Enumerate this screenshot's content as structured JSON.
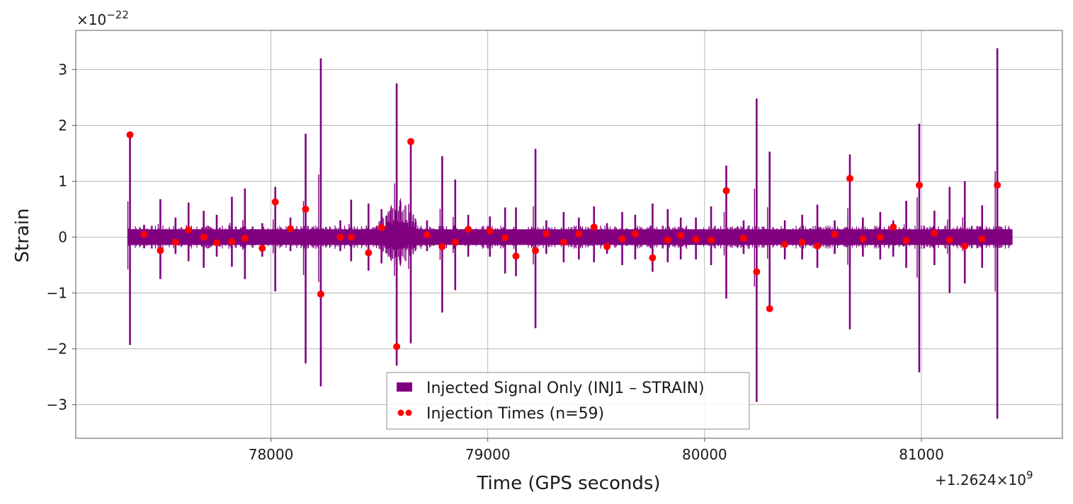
{
  "chart_data": {
    "type": "line",
    "xlabel": "Time (GPS seconds)",
    "ylabel": "Strain",
    "x_offset_label": "+1.2624×10",
    "x_offset_exponent": "9",
    "y_scale_label": "×10",
    "y_scale_exponent": "−22",
    "xlim": [
      77100,
      81650
    ],
    "ylim": [
      -3.6,
      3.7
    ],
    "x_ticks": [
      78000,
      79000,
      80000,
      81000
    ],
    "x_tick_labels": [
      "78000",
      "79000",
      "80000",
      "81000"
    ],
    "y_ticks": [
      3,
      2,
      1,
      0,
      -1,
      -2,
      -3
    ],
    "y_tick_labels": [
      "3",
      "2",
      "1",
      "0",
      "−1",
      "−2",
      "−3"
    ],
    "grid": true,
    "legend_position": "bottom-center",
    "colors": {
      "signal": "#800080",
      "injection": "#ff0000",
      "grid": "#b0b0b0",
      "frame": "#808080"
    },
    "signal": {
      "name": "Injected Signal Only (INJ1 – STRAIN)",
      "x_range": [
        77340,
        81420
      ],
      "band_halfwidth": 0.14,
      "spikes": [
        [
          77350,
          1.83,
          -1.93
        ],
        [
          77415,
          0.22,
          -0.2
        ],
        [
          77490,
          0.68,
          -0.75
        ],
        [
          77560,
          0.35,
          -0.3
        ],
        [
          77620,
          0.62,
          -0.43
        ],
        [
          77690,
          0.47,
          -0.55
        ],
        [
          77750,
          0.4,
          -0.35
        ],
        [
          77820,
          0.72,
          -0.53
        ],
        [
          77880,
          0.87,
          -0.75
        ],
        [
          77960,
          0.25,
          -0.35
        ],
        [
          78020,
          0.9,
          -0.97
        ],
        [
          78090,
          0.35,
          -0.25
        ],
        [
          78160,
          1.85,
          -2.26
        ],
        [
          78230,
          3.2,
          -2.67
        ],
        [
          78320,
          0.3,
          -0.25
        ],
        [
          78370,
          0.67,
          -0.43
        ],
        [
          78450,
          0.6,
          -0.6
        ],
        [
          78510,
          0.5,
          -0.47
        ],
        [
          78580,
          2.75,
          -2.3
        ],
        [
          78645,
          1.7,
          -1.9
        ],
        [
          78720,
          0.3,
          -0.25
        ],
        [
          78790,
          1.45,
          -1.35
        ],
        [
          78850,
          1.03,
          -0.95
        ],
        [
          78910,
          0.4,
          -0.35
        ],
        [
          79010,
          0.37,
          -0.35
        ],
        [
          79080,
          0.53,
          -0.65
        ],
        [
          79130,
          0.53,
          -0.7
        ],
        [
          79220,
          1.58,
          -1.63
        ],
        [
          79270,
          0.3,
          -0.3
        ],
        [
          79350,
          0.45,
          -0.45
        ],
        [
          79420,
          0.35,
          -0.4
        ],
        [
          79490,
          0.55,
          -0.45
        ],
        [
          79550,
          0.25,
          -0.3
        ],
        [
          79620,
          0.45,
          -0.5
        ],
        [
          79680,
          0.4,
          -0.4
        ],
        [
          79760,
          0.6,
          -0.62
        ],
        [
          79830,
          0.5,
          -0.45
        ],
        [
          79890,
          0.35,
          -0.4
        ],
        [
          79960,
          0.35,
          -0.4
        ],
        [
          80030,
          0.55,
          -0.5
        ],
        [
          80100,
          1.28,
          -1.1
        ],
        [
          80180,
          0.3,
          -0.3
        ],
        [
          80240,
          2.48,
          -2.95
        ],
        [
          80300,
          1.53,
          -1.28
        ],
        [
          80370,
          0.3,
          -0.4
        ],
        [
          80450,
          0.4,
          -0.4
        ],
        [
          80520,
          0.58,
          -0.55
        ],
        [
          80600,
          0.3,
          -0.3
        ],
        [
          80670,
          1.48,
          -1.65
        ],
        [
          80730,
          0.35,
          -0.35
        ],
        [
          80810,
          0.45,
          -0.4
        ],
        [
          80870,
          0.3,
          -0.35
        ],
        [
          80930,
          0.65,
          -0.55
        ],
        [
          80990,
          2.03,
          -2.42
        ],
        [
          81060,
          0.47,
          -0.5
        ],
        [
          81130,
          0.9,
          -1.0
        ],
        [
          81200,
          1.0,
          -0.83
        ],
        [
          81280,
          0.57,
          -0.55
        ],
        [
          81350,
          3.38,
          -3.25
        ]
      ]
    },
    "injections": {
      "name": "Injection Times (n=59)",
      "points": [
        [
          77350,
          1.83
        ],
        [
          77415,
          0.05
        ],
        [
          77490,
          -0.24
        ],
        [
          77560,
          -0.09
        ],
        [
          77620,
          0.13
        ],
        [
          77690,
          0.0
        ],
        [
          77750,
          -0.1
        ],
        [
          77820,
          -0.08
        ],
        [
          77880,
          -0.02
        ],
        [
          77960,
          -0.2
        ],
        [
          78020,
          0.63
        ],
        [
          78090,
          0.15
        ],
        [
          78160,
          0.5
        ],
        [
          78230,
          -1.02
        ],
        [
          78320,
          0.0
        ],
        [
          78370,
          0.0
        ],
        [
          78450,
          -0.28
        ],
        [
          78510,
          0.17
        ],
        [
          78580,
          -1.96
        ],
        [
          78645,
          1.71
        ],
        [
          78720,
          0.04
        ],
        [
          78790,
          -0.17
        ],
        [
          78850,
          -0.09
        ],
        [
          78910,
          0.14
        ],
        [
          79010,
          0.11
        ],
        [
          79080,
          -0.01
        ],
        [
          79130,
          -0.34
        ],
        [
          79220,
          -0.24
        ],
        [
          79270,
          0.06
        ],
        [
          79350,
          -0.09
        ],
        [
          79420,
          0.06
        ],
        [
          79490,
          0.18
        ],
        [
          79550,
          -0.17
        ],
        [
          79620,
          -0.03
        ],
        [
          79680,
          0.06
        ],
        [
          79760,
          -0.37
        ],
        [
          79830,
          -0.05
        ],
        [
          79890,
          0.03
        ],
        [
          79960,
          -0.04
        ],
        [
          80030,
          -0.05
        ],
        [
          80100,
          0.83
        ],
        [
          80180,
          -0.02
        ],
        [
          80240,
          -0.62
        ],
        [
          80300,
          -1.28
        ],
        [
          80370,
          -0.13
        ],
        [
          80450,
          -0.09
        ],
        [
          80520,
          -0.16
        ],
        [
          80600,
          0.05
        ],
        [
          80670,
          1.05
        ],
        [
          80730,
          -0.03
        ],
        [
          80810,
          0.0
        ],
        [
          80870,
          0.18
        ],
        [
          80930,
          -0.06
        ],
        [
          80990,
          0.93
        ],
        [
          81060,
          0.07
        ],
        [
          81130,
          -0.05
        ],
        [
          81200,
          -0.16
        ],
        [
          81280,
          -0.03
        ],
        [
          81350,
          0.93
        ]
      ]
    }
  }
}
